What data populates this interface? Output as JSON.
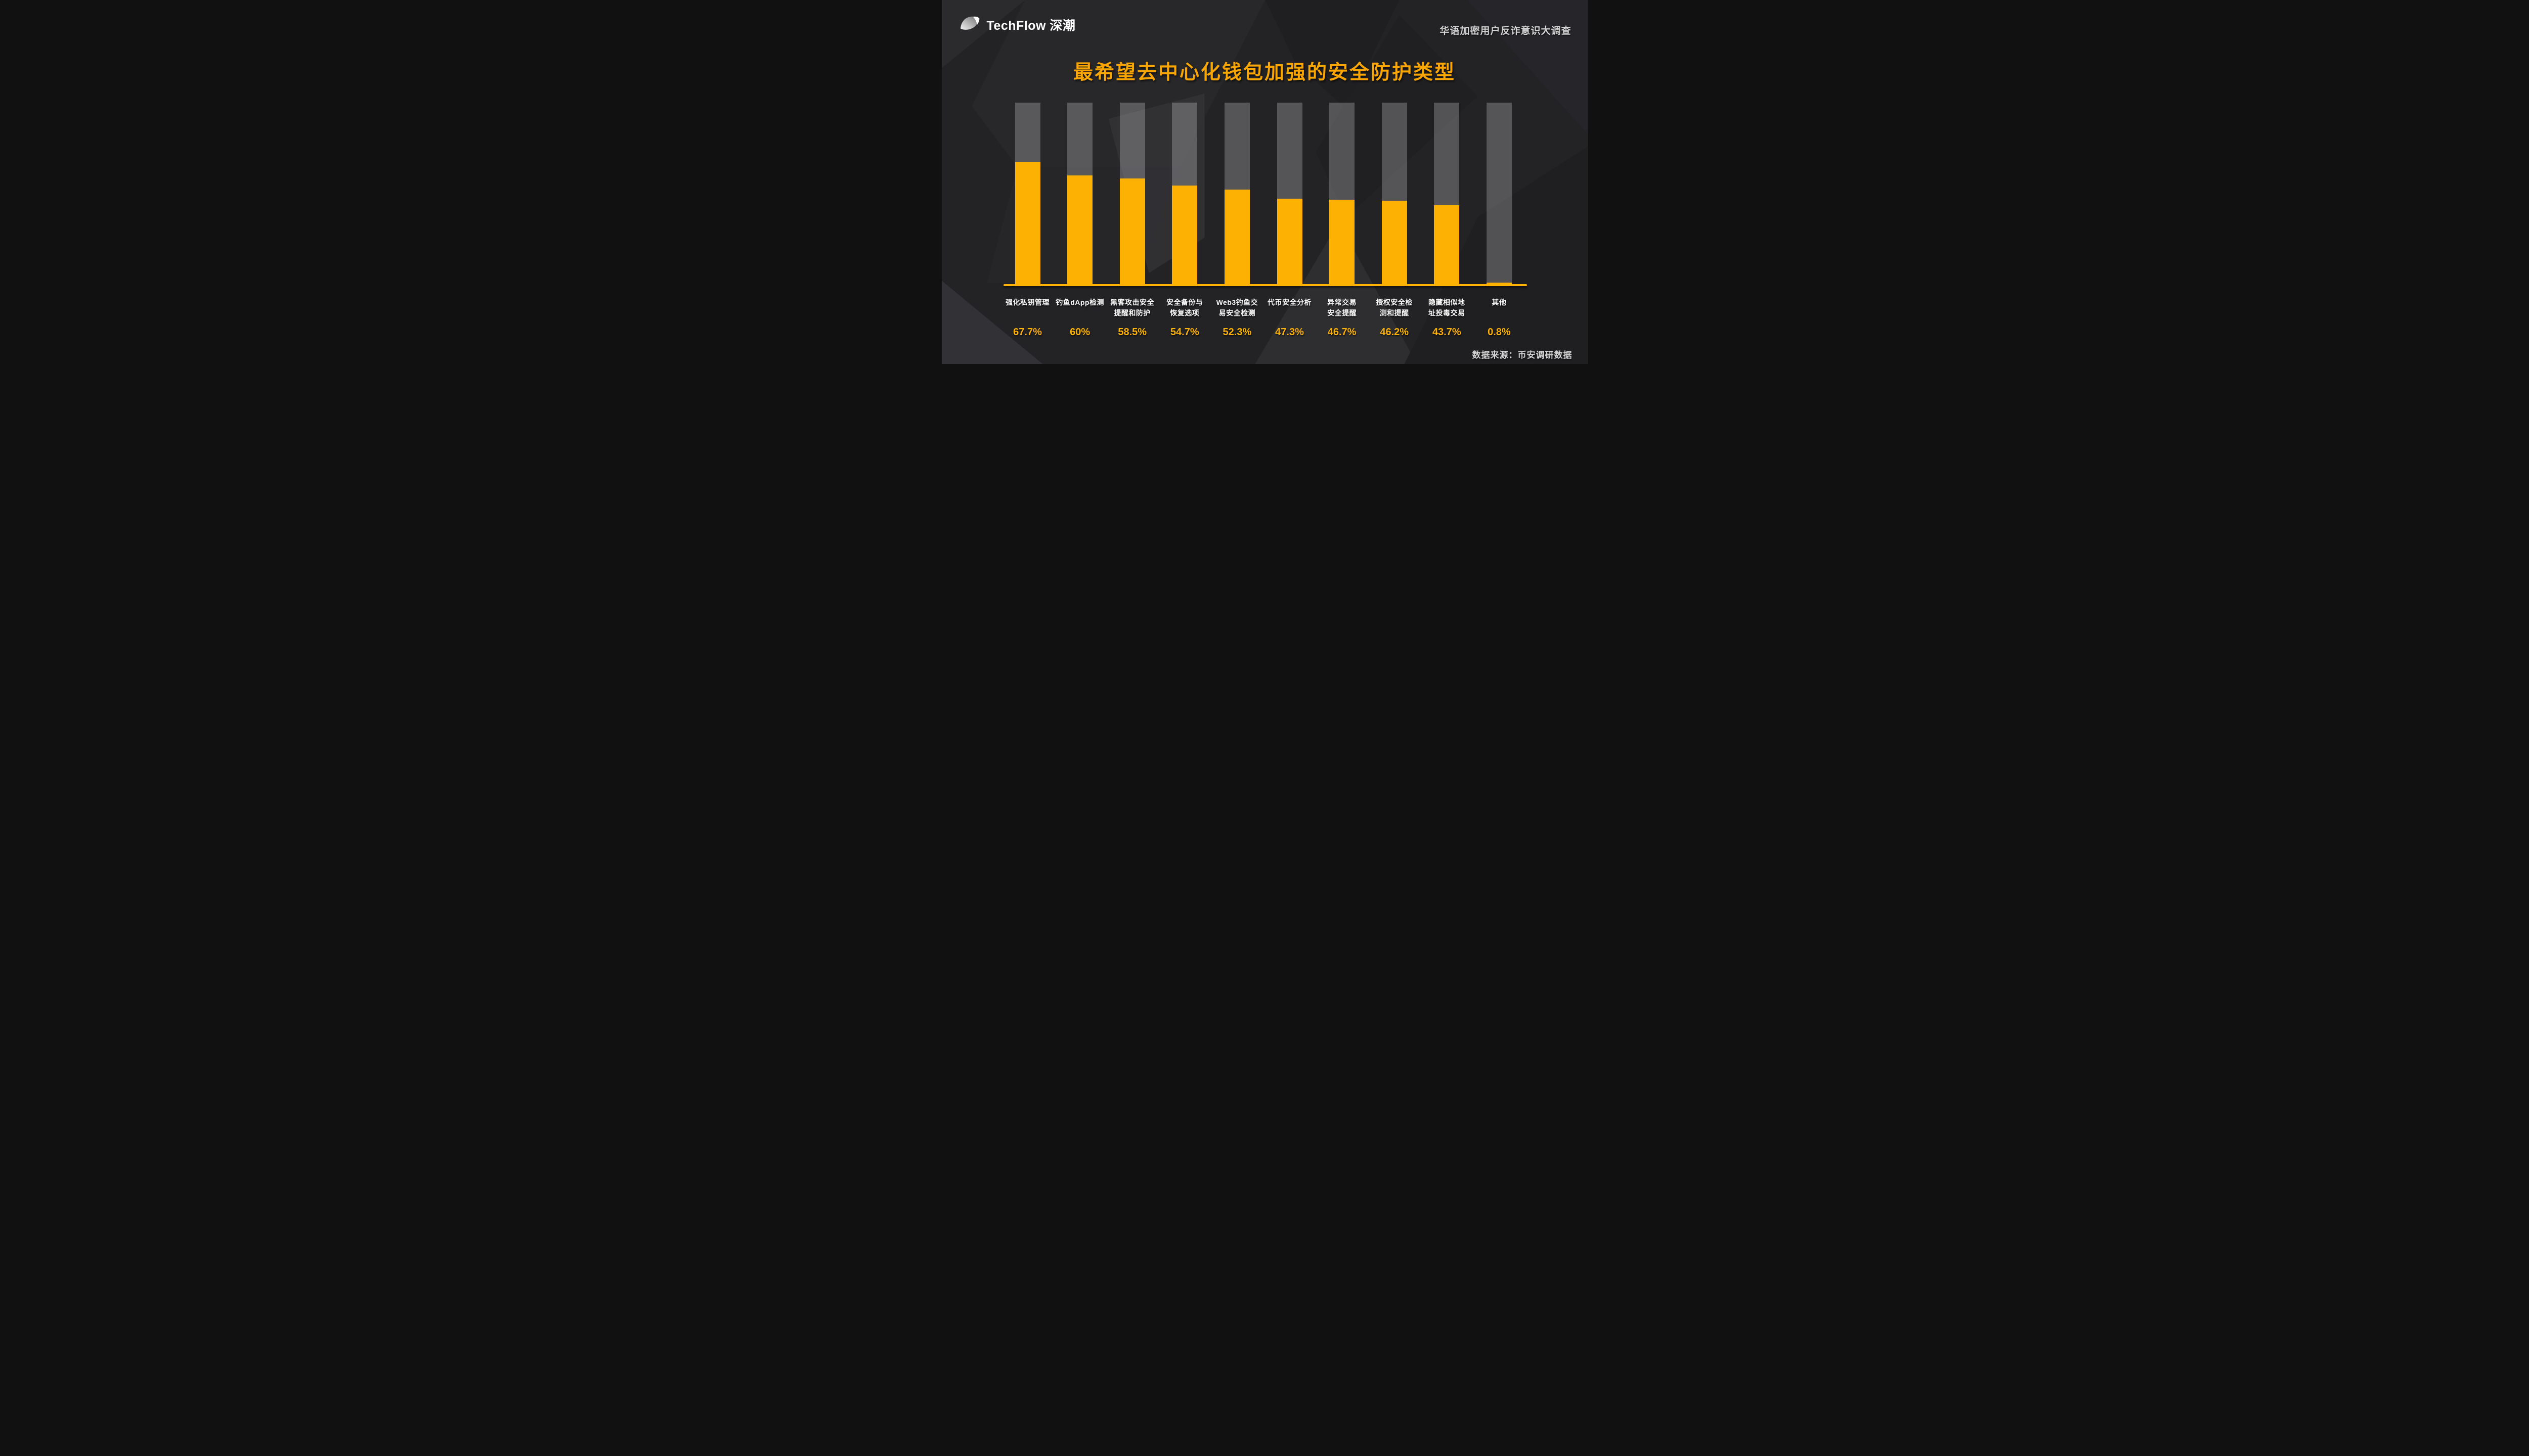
{
  "brand": {
    "logo_text": "TechFlow 深潮"
  },
  "header": {
    "survey_title": "华语加密用户反诈意识大调查"
  },
  "title": "最希望去中心化钱包加强的安全防护类型",
  "footer": {
    "source_text": "数据来源：币安调研数据"
  },
  "colors": {
    "background": "#232326",
    "bar_yellow": "#FCB103",
    "title_yellow": "#F9A602",
    "axis_yellow": "#FCB103",
    "track_gray": "rgba(255,255,255,0.23)",
    "label_white": "#FFFFFF",
    "muted_gray": "#D6D6D6"
  },
  "chart_data": {
    "type": "bar",
    "title": "最希望去中心化钱包加强的安全防护类型",
    "categories": [
      "强化私钥管理",
      "钓鱼dApp检测",
      "黑客攻击安全提醒和防护",
      "安全备份与恢复选项",
      "Web3钓鱼交易安全检测",
      "代币安全分析",
      "异常交易安全提醒",
      "授权安全检测和提醒",
      "隐藏相似地址投毒交易",
      "其他"
    ],
    "category_lines": [
      [
        "强化私钥管理"
      ],
      [
        "钓鱼dApp检测"
      ],
      [
        "黑客攻击安全",
        "提醒和防护"
      ],
      [
        "安全备份与",
        "恢复选项"
      ],
      [
        "Web3钓鱼交",
        "易安全检测"
      ],
      [
        "代币安全分析"
      ],
      [
        "异常交易",
        "安全提醒"
      ],
      [
        "授权安全检",
        "测和提醒"
      ],
      [
        "隐藏相似地",
        "址投毒交易"
      ],
      [
        "其他"
      ]
    ],
    "values": [
      67.7,
      60,
      58.5,
      54.7,
      52.3,
      47.3,
      46.7,
      46.2,
      43.7,
      0.8
    ],
    "value_labels": [
      "67.7%",
      "60%",
      "58.5%",
      "54.7%",
      "52.3%",
      "47.3%",
      "46.7%",
      "46.2%",
      "43.7%",
      "0.8%"
    ],
    "xlabel": "",
    "ylabel": "",
    "ylim": [
      0,
      100
    ],
    "grid": false,
    "legend": null,
    "bar_color": "#FCB103",
    "track_color": "rgba(255,255,255,0.23)"
  }
}
